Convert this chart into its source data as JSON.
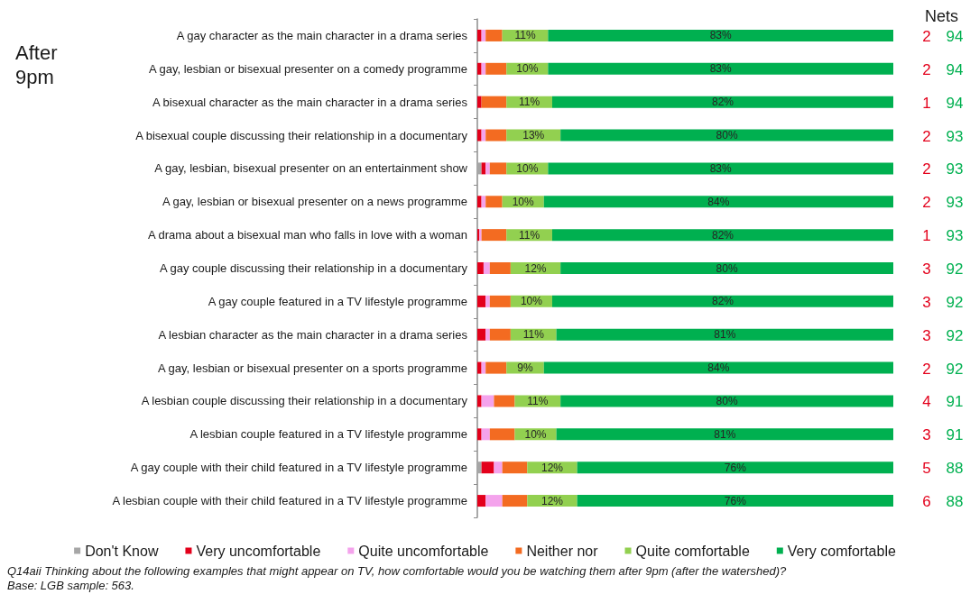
{
  "chart_data": {
    "type": "bar",
    "orientation": "horizontal",
    "stacked": true,
    "title": "After 9pm",
    "categories": [
      "A gay character as the main character in a drama series",
      "A gay, lesbian or bisexual presenter on a comedy programme",
      "A bisexual character as the main character in a drama series",
      "A bisexual couple discussing their relationship in a documentary",
      "A gay, lesbian, bisexual presenter on an entertainment show",
      "A gay, lesbian or bisexual presenter on a news programme",
      "A drama about a bisexual man who falls in love with a woman",
      "A gay couple discussing their relationship in a documentary",
      "A gay couple featured in a TV lifestyle programme",
      "A lesbian character as the main character in a drama series",
      "A gay, lesbian or bisexual presenter on a sports programme",
      "A lesbian couple discussing their relationship in a documentary",
      "A lesbian couple featured in a TV lifestyle programme",
      "A gay couple with their child featured in a TV lifestyle programme",
      "A lesbian couple with their child featured in a TV lifestyle programme"
    ],
    "series": [
      {
        "name": "Don't Know",
        "color": "#a6a6a6",
        "values": [
          0,
          0,
          0,
          0,
          1,
          0,
          0,
          0,
          0,
          0,
          0,
          0,
          0,
          1,
          0
        ]
      },
      {
        "name": "Very uncomfortable",
        "color": "#e3001b",
        "values": [
          1,
          1,
          1,
          1,
          1,
          1,
          0.5,
          1.5,
          2,
          2,
          1,
          1,
          1,
          3,
          2
        ]
      },
      {
        "name": "Quite uncomfortable",
        "color": "#f4a3ec",
        "values": [
          1,
          1,
          0,
          1,
          1,
          1,
          0.5,
          1.5,
          1,
          1,
          1,
          3,
          2,
          2,
          4
        ]
      },
      {
        "name": "Neither nor",
        "color": "#f36b21",
        "values": [
          4,
          5,
          6,
          5,
          4,
          4,
          6,
          5,
          5,
          5,
          5,
          5,
          6,
          6,
          6
        ]
      },
      {
        "name": "Quite comfortable",
        "color": "#92d050",
        "values": [
          11,
          10,
          11,
          13,
          10,
          10,
          11,
          12,
          10,
          11,
          9,
          11,
          10,
          12,
          12
        ],
        "value_labels": [
          "11%",
          "10%",
          "11%",
          "13%",
          "10%",
          "10%",
          "11%",
          "12%",
          "10%",
          "11%",
          "9%",
          "11%",
          "10%",
          "12%",
          "12%"
        ]
      },
      {
        "name": "Very comfortable",
        "color": "#00b050",
        "values": [
          83,
          83,
          82,
          80,
          83,
          84,
          82,
          80,
          82,
          81,
          84,
          80,
          81,
          76,
          76
        ],
        "value_labels": [
          "83%",
          "83%",
          "82%",
          "80%",
          "83%",
          "84%",
          "82%",
          "80%",
          "82%",
          "81%",
          "84%",
          "80%",
          "81%",
          "76%",
          "76%"
        ]
      }
    ],
    "tick_labels": "y",
    "legend": "bottom",
    "annotations": [
      "Nets",
      "2",
      "94",
      "2",
      "94",
      "1",
      "94",
      "2",
      "93",
      "2",
      "93",
      "2",
      "93",
      "1",
      "93",
      "3",
      "92",
      "3",
      "92",
      "3",
      "92",
      "2",
      "92",
      "4",
      "91",
      "3",
      "91",
      "5",
      "88",
      "6",
      "88",
      "Q14aii Thinking about the following examples that might appear on TV, how comfortable would you be watching them after 9pm (after the watershed)?",
      "Base: LGB sample: 563."
    ]
  }
}
